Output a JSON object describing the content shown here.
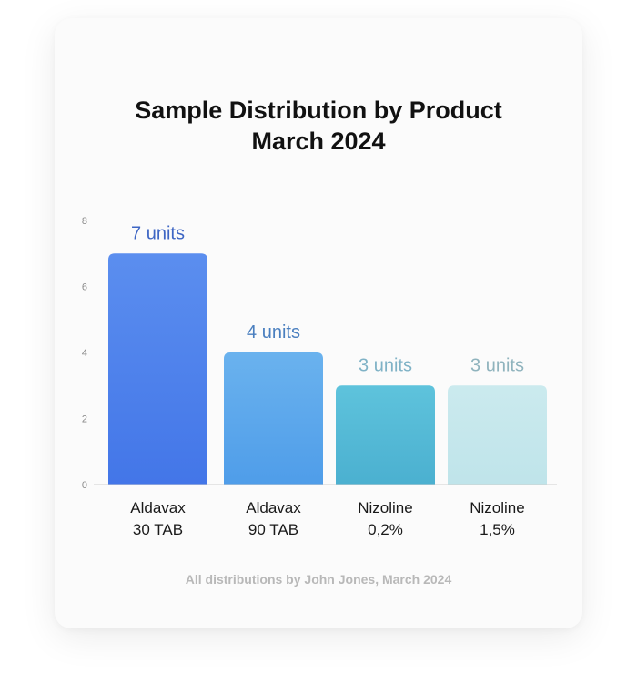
{
  "chart_data": {
    "type": "bar",
    "title": [
      "Sample Distribution by Product",
      "March 2024"
    ],
    "categories": [
      [
        "Aldavax",
        "30 TAB"
      ],
      [
        "Aldavax",
        "90 TAB"
      ],
      [
        "Nizoline",
        "0,2%"
      ],
      [
        "Nizoline",
        "1,5%"
      ]
    ],
    "values": [
      7,
      4,
      3,
      3
    ],
    "data_labels": [
      "7 units",
      "4 units",
      "3 units",
      "3 units"
    ],
    "yticks": [
      "0",
      "2",
      "4",
      "6",
      "8"
    ],
    "ylim": [
      0,
      8
    ],
    "xlabel": "",
    "ylabel": "",
    "grid": false,
    "colors": {
      "bar_tops": [
        "#5b8eef",
        "#6ab2ee",
        "#5ec3dc",
        "#cbeaee"
      ],
      "bar_bottoms": [
        "#4376e8",
        "#4f9de9",
        "#4bb0d0",
        "#bfe4ea"
      ],
      "labels": [
        "#3e66c4",
        "#4a7fbf",
        "#7fb2c6",
        "#8fb3bd"
      ]
    }
  },
  "footnote": "All distributions by John Jones, March 2024"
}
